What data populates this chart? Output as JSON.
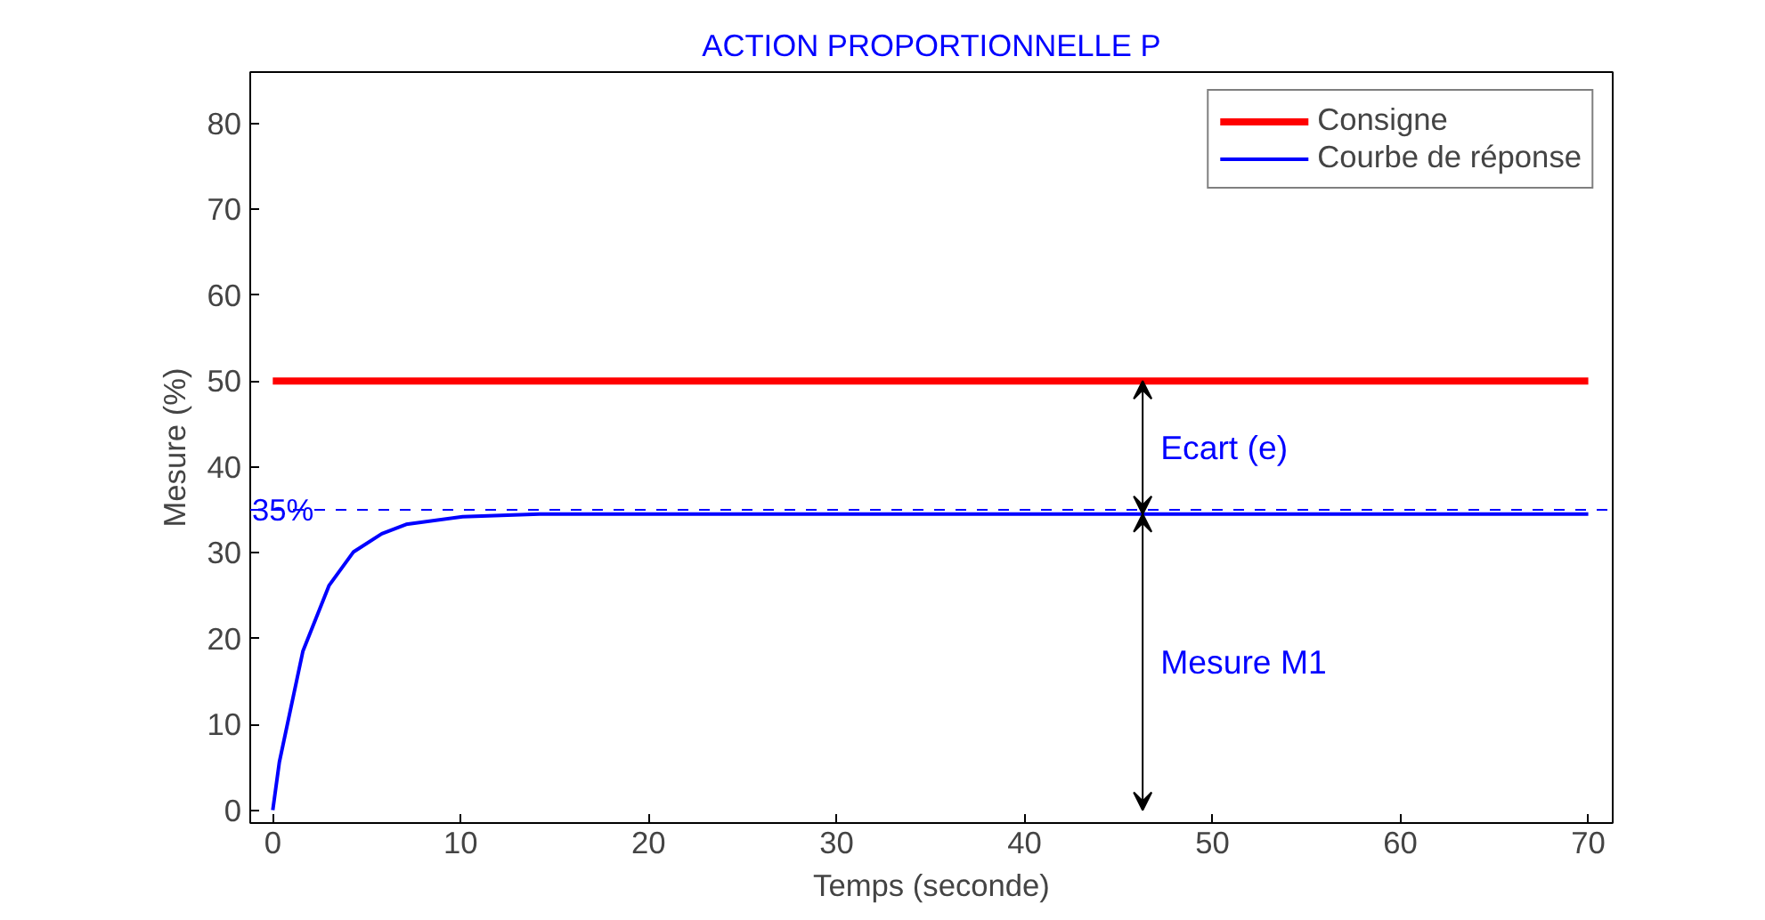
{
  "chart_data": {
    "type": "line",
    "title": "ACTION PROPORTIONNELLE P",
    "xlabel": "Temps (seconde)",
    "ylabel": "Mesure (%)",
    "xlim": [
      -1.2,
      71.3
    ],
    "ylim": [
      -1.5,
      86
    ],
    "xticks": [
      0,
      10,
      20,
      30,
      40,
      50,
      60,
      70
    ],
    "yticks": [
      0,
      10,
      20,
      30,
      40,
      50,
      60,
      70,
      80
    ],
    "series": [
      {
        "name": "Consigne",
        "color": "#ff0000",
        "x": [
          0,
          70
        ],
        "values": [
          50,
          50
        ]
      },
      {
        "name": "Courbe de réponse",
        "color": "#0000ff",
        "x": [
          0,
          0.35,
          1.6,
          3,
          4.3,
          5.8,
          7.1,
          10.1,
          14.2,
          70
        ],
        "values": [
          0,
          5.6,
          18.5,
          26.2,
          30.1,
          32.2,
          33.3,
          34.2,
          34.5,
          34.5
        ]
      }
    ],
    "ref_lines": [
      {
        "axis": "y",
        "value": 35,
        "label": "35%",
        "color": "#0000ff",
        "line_style": "dashed"
      }
    ],
    "annotations": [
      "Ecart (e)",
      "Mesure M1"
    ],
    "legend": "top right",
    "grid": false,
    "line_style": "solid"
  }
}
